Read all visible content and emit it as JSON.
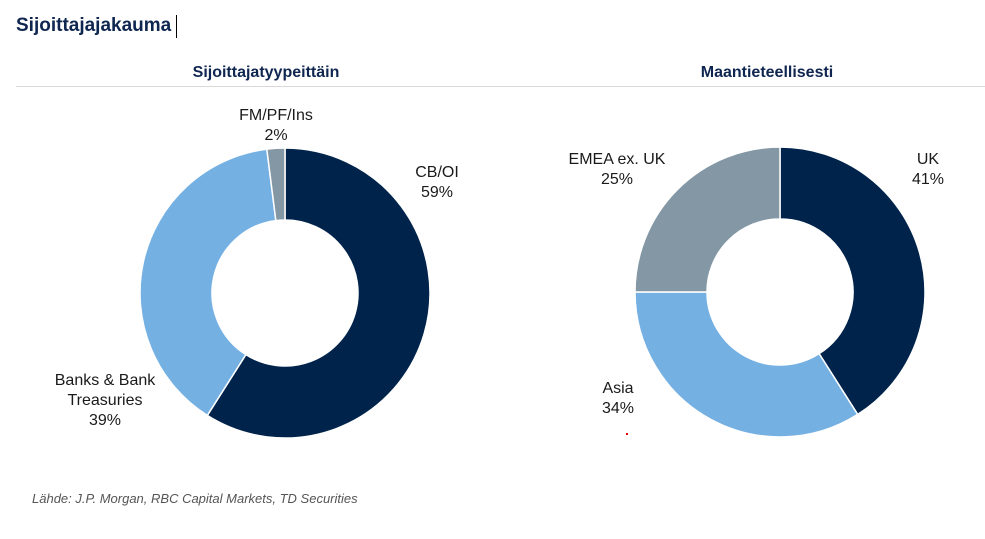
{
  "page": {
    "title": "Sijoittajajakauma"
  },
  "source_note": "Lähde: J.P. Morgan, RBC Capital Markets, TD Securities",
  "colors": {
    "dark_navy": "#00234b",
    "light_blue": "#75b0e3",
    "gray_blue": "#8397a4",
    "title": "#0f2650"
  },
  "chart_data": [
    {
      "type": "pie",
      "title": "Sijoittajatyypeittäin",
      "slices": [
        {
          "label": "CB/OI",
          "value": 59,
          "display": "59%",
          "color": "#00234b"
        },
        {
          "label": "Banks & Bank Treasuries",
          "label_lines": [
            "Banks & Bank",
            "Treasuries"
          ],
          "value": 39,
          "display": "39%",
          "color": "#75b0e3"
        },
        {
          "label": "FM/PF/Ins",
          "value": 2,
          "display": "2%",
          "color": "#8397a4"
        }
      ]
    },
    {
      "type": "pie",
      "title": "Maantieteellisesti",
      "slices": [
        {
          "label": "UK",
          "value": 41,
          "display": "41%",
          "color": "#00234b"
        },
        {
          "label": "Asia",
          "value": 34,
          "display": "34%",
          "color": "#75b0e3"
        },
        {
          "label": "EMEA ex. UK",
          "value": 25,
          "display": "25%",
          "color": "#8397a4"
        }
      ]
    }
  ]
}
